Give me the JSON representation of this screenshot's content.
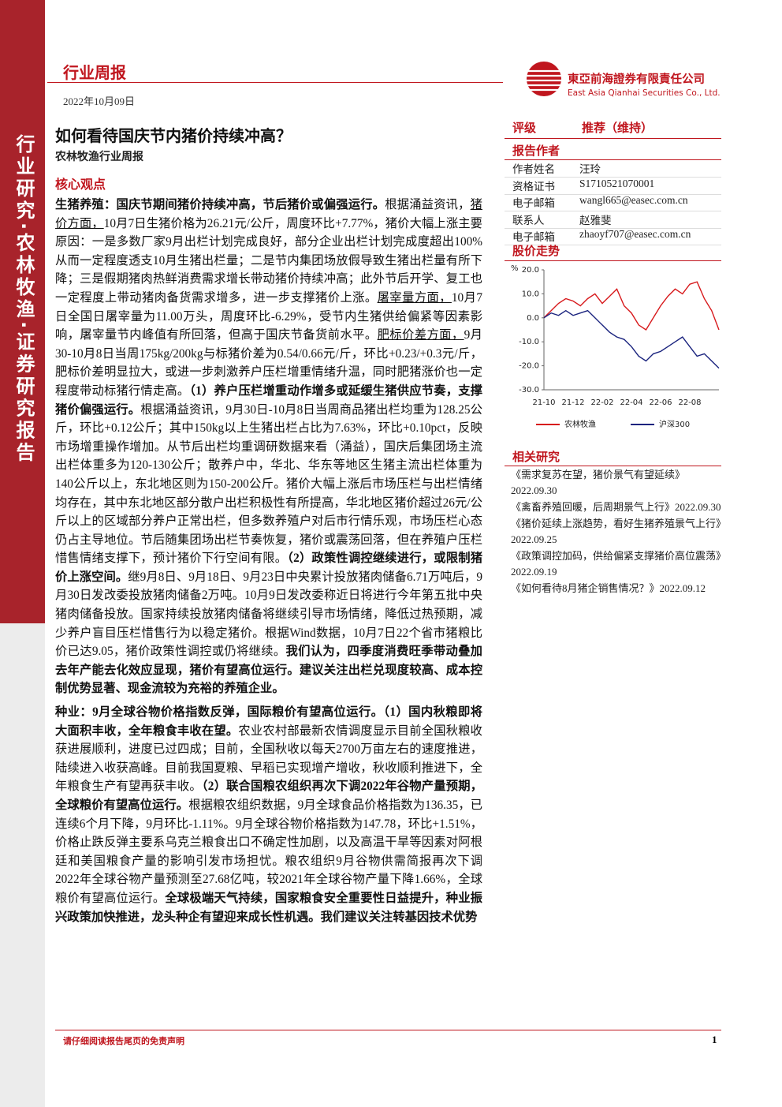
{
  "sidebar": "行业研究·农林牧渔·证券研究报告",
  "header": {
    "label": "行业周报",
    "date": "2022年10月09日",
    "company_cn": "東亞前海證券有限責任公司",
    "company_en": "East Asia Qianhai Securities Co., Ltd."
  },
  "title": "如何看待国庆节内猪价持续冲高？",
  "subtitle": "农林牧渔行业周报",
  "section": "核心观点",
  "body": {
    "paragraphs": [
      {
        "runs": [
          {
            "text": "生猪养殖：国庆节期间猪价持续冲高，节后猪价或偏强运行。",
            "style": "bold"
          },
          {
            "text": "根据涌益资讯，",
            "style": "normal"
          },
          {
            "text": "猪价方面，",
            "style": "underline"
          },
          {
            "text": "10月7日生猪价格为26.21元/公斤，周度环比+7.77%，猪价大幅上涨主要原因：一是多数厂家9月出栏计划完成良好，部分企业出栏计划完成度超出100%从而一定程度透支10月生猪出栏量；二是节内集团场放假导致生猪出栏量有所下降；三是假期猪肉热鲜消费需求增长带动猪价持续冲高；此外节后开学、复工也一定程度上带动猪肉备货需求增多，进一步支撑猪价上涨。",
            "style": "normal"
          },
          {
            "text": "屠宰量方面，",
            "style": "underline"
          },
          {
            "text": "10月7日全国日屠宰量为11.00万头，周度环比-6.29%，受节内生猪供给偏紧等因素影响，屠宰量节内峰值有所回落，但高于国庆节备货前水平。",
            "style": "normal"
          },
          {
            "text": "肥标价差方面，",
            "style": "underline"
          },
          {
            "text": "9月30-10月8日当周175kg/200kg与标猪价差为0.54/0.66元/斤，环比+0.23/+0.3元/斤，肥标价差明显拉大，或进一步刺激养户压栏增重情绪升温，同时肥猪涨价也一定程度带动标猪行情走高。",
            "style": "normal"
          },
          {
            "text": "（1）养户压栏增重动作增多或延缓生猪供应节奏，支撑猪价偏强运行。",
            "style": "bold"
          },
          {
            "text": "根据涌益资讯，9月30日-10月8日当周商品猪出栏均重为128.25公斤，环比+0.12公斤；其中150kg以上生猪出栏占比为7.63%，环比+0.10pct，反映市场增重操作增加。从节后出栏均重调研数据来看（涌益），国庆后集团场主流出栏体重多为120-130公斤；散养户中，华北、华东等地区生猪主流出栏体重为140公斤以上，东北地区则为150-200公斤。猪价大幅上涨后市场压栏与出栏情绪均存在，其中东北地区部分散户出栏积极性有所提高，华北地区猪价超过26元/公斤以上的区域部分养户正常出栏，但多数养殖户对后市行情乐观，市场压栏心态仍占主导地位。节后随集团场出栏节奏恢复，猪价或震荡回落，但在养殖户压栏惜售情绪支撑下，预计猪价下行空间有限。",
            "style": "normal"
          },
          {
            "text": "（2）政策性调控继续进行，或限制猪价上涨空间。",
            "style": "bold"
          },
          {
            "text": "继9月8日、9月18日、9月23日中央累计投放猪肉储备6.71万吨后，9月30日发改委投放猪肉储备2万吨。10月9日发改委称近日将进行今年第五批中央猪肉储备投放。国家持续投放猪肉储备将继续引导市场情绪，降低过热预期，减少养户盲目压栏惜售行为以稳定猪价。根据Wind数据，10月7日22个省市猪粮比价已达9.05，猪价政策性调控或仍将继续。",
            "style": "normal"
          },
          {
            "text": "我们认为，四季度消费旺季带动叠加去年产能去化效应显现，猪价有望高位运行。建议关注出栏兑现度较高、成本控制优势显著、现金流较为充裕的养殖企业。",
            "style": "bold"
          }
        ]
      },
      {
        "runs": [
          {
            "text": "种业：9月全球谷物价格指数反弹，国际粮价有望高位运行。（1）国内秋粮即将大面积丰收，全年粮食丰收在望。",
            "style": "bold"
          },
          {
            "text": "农业农村部最新农情调度显示目前全国秋粮收获进展顺利，进度已过四成；目前，全国秋收以每天2700万亩左右的速度推进，陆续进入收获高峰。目前我国夏粮、早稻已实现增产增收，秋收顺利推进下，全年粮食生产有望再获丰收。",
            "style": "normal"
          },
          {
            "text": "（2）联合国粮农组织再次下调2022年谷物产量预期，全球粮价有望高位运行。",
            "style": "bold"
          },
          {
            "text": "根据粮农组织数据，9月全球食品价格指数为136.35，已连续6个月下降，9月环比-1.11%。9月全球谷物价格指数为147.78，环比+1.51%，价格止跌反弹主要系乌克兰粮食出口不确定性加剧，以及高温干旱等因素对阿根廷和美国粮食产量的影响引发市场担忧。粮农组织9月谷物供需简报再次下调2022年全球谷物产量预测至27.68亿吨，较2021年全球谷物产量下降1.66%，全球粮价有望高位运行。",
            "style": "normal"
          },
          {
            "text": "全球极端天气持续，国家粮食安全重要性日益提升，种业振兴政策加快推进，龙头种企有望迎来成长性机遇。我们建议关注转基因技术优势",
            "style": "bold"
          }
        ]
      }
    ]
  },
  "rating": {
    "label": "评级",
    "value": "推荐（维持）"
  },
  "authors": {
    "title": "报告作者",
    "rows": [
      [
        "作者姓名",
        "汪玲"
      ],
      [
        "资格证书",
        "S1710521070001"
      ],
      [
        "电子邮箱",
        "wangl665@easec.com.cn"
      ],
      [
        "联系人",
        "赵雅斐"
      ],
      [
        "电子邮箱",
        "zhaoyf707@easec.com.cn"
      ]
    ]
  },
  "chart_data": {
    "type": "line",
    "title": "股价走势",
    "y_unit": "%",
    "categories": [
      "21-10",
      null,
      null,
      null,
      "21-12",
      null,
      null,
      null,
      "22-02",
      null,
      null,
      null,
      "22-04",
      null,
      null,
      null,
      "22-06",
      null,
      null,
      null,
      "22-08",
      null,
      null,
      null,
      null
    ],
    "series": [
      {
        "name": "农林牧渔",
        "color": "#d7191c",
        "values": [
          0,
          3,
          6,
          8,
          7,
          5,
          8,
          10,
          6,
          9,
          12,
          5,
          2,
          -3,
          -5,
          0,
          5,
          9,
          12,
          10,
          14,
          15,
          8,
          3,
          -5
        ]
      },
      {
        "name": "沪深300",
        "color": "#1a237e",
        "values": [
          0,
          2,
          1,
          3,
          1,
          2,
          3,
          0,
          -3,
          -6,
          -8,
          -9,
          -12,
          -16,
          -18,
          -15,
          -14,
          -12,
          -10,
          -8,
          -12,
          -16,
          -15,
          -18,
          -21
        ]
      }
    ],
    "ylim": [
      -30,
      20
    ],
    "yticks": [
      {
        "value": 20,
        "label": "20.0"
      },
      {
        "value": 10,
        "label": "10.0"
      },
      {
        "value": 0,
        "label": "0.0"
      },
      {
        "value": -10,
        "label": "-10.0"
      },
      {
        "value": -20,
        "label": "-20.0"
      },
      {
        "value": -30,
        "label": "-30.0"
      }
    ]
  },
  "related": {
    "title": "相关研究",
    "items": [
      "《需求复苏在望，猪价景气有望延续》2022.09.30",
      "《禽畜养殖回暖，后周期景气上行》2022.09.30",
      "《猪价延续上涨趋势，看好生猪养殖景气上行》2022.09.25",
      "《政策调控加码，供给偏紧支撑猪价高位震荡》2022.09.19",
      "《如何看待8月猪企销售情况？》2022.09.12"
    ]
  },
  "footer": {
    "disclaimer": "请仔细阅读报告尾页的免责声明",
    "page": "1"
  }
}
